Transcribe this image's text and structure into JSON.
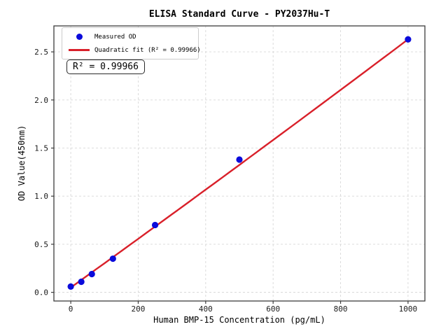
{
  "chart_data": {
    "type": "scatter",
    "title": "ELISA Standard Curve - PY2037Hu-T",
    "xlabel": "Human BMP-15 Concentration (pg/mL)",
    "ylabel": "OD Value(450nm)",
    "xlim": [
      -50,
      1050
    ],
    "ylim": [
      -0.09,
      2.77
    ],
    "grid": true,
    "grid_style": "dashed",
    "xticks": {
      "values": [
        0,
        200,
        400,
        600,
        800,
        1000
      ],
      "labels": [
        "0",
        "200",
        "400",
        "600",
        "800",
        "1000"
      ]
    },
    "yticks": {
      "values": [
        0.0,
        0.5,
        1.0,
        1.5,
        2.0,
        2.5
      ],
      "labels": [
        "0.0",
        "0.5",
        "1.0",
        "1.5",
        "2.0",
        "2.5"
      ]
    },
    "series": [
      {
        "name": "Measured OD",
        "type": "scatter",
        "color": "#0b0bdb",
        "marker": "circle",
        "x": [
          0,
          31.25,
          62.5,
          125,
          250,
          500,
          1000
        ],
        "y": [
          0.06,
          0.11,
          0.19,
          0.35,
          0.7,
          1.38,
          2.63
        ]
      },
      {
        "name": "Quadratic fit",
        "type": "line",
        "color": "#d9202a",
        "fit": {
          "a": 0.05,
          "b": 0.00252,
          "c": 6e-08
        },
        "r_squared": 0.99966,
        "x_range": [
          0,
          1000
        ]
      }
    ],
    "legend": {
      "position": "upper-left",
      "entries": [
        {
          "label": "Measured OD",
          "marker": "dot",
          "color": "#0b0bdb"
        },
        {
          "label": "Quadratic fit (R² = 0.99966)",
          "marker": "line",
          "color": "#d9202a"
        }
      ]
    },
    "annotation": "R² = 0.99966",
    "colors": {
      "frame": "#3c3c3c",
      "gridline": "#d8d8d8",
      "background": "#ffffff"
    }
  }
}
